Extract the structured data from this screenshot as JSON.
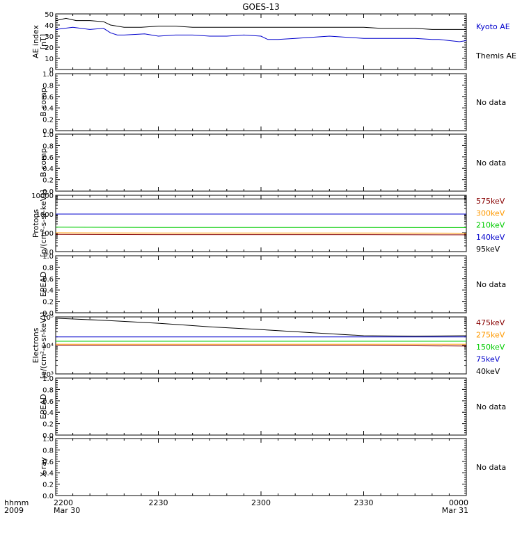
{
  "title": "GOES-13",
  "x_axis": {
    "row1_label": "hhmm",
    "row2_label": "2009",
    "ticks": [
      {
        "t": 0,
        "label": "2200",
        "sub": "Mar 30"
      },
      {
        "t": 30,
        "label": "2230",
        "sub": ""
      },
      {
        "t": 60,
        "label": "2300",
        "sub": ""
      },
      {
        "t": 90,
        "label": "2330",
        "sub": ""
      },
      {
        "t": 120,
        "label": "0000",
        "sub": "Mar 31"
      }
    ]
  },
  "chart_data": [
    {
      "type": "line",
      "ylabel": "AE index [nT]",
      "ylabel_lines": [
        "AE index",
        "[nT]"
      ],
      "ylim": [
        0,
        50
      ],
      "yticks": [
        0,
        10,
        20,
        30,
        40,
        50
      ],
      "xlim_minutes": [
        0,
        120
      ],
      "series": [
        {
          "name": "Kyoto AE",
          "color": "#0000cc",
          "x": [
            0,
            5,
            10,
            14,
            16,
            18,
            20,
            26,
            30,
            35,
            40,
            45,
            50,
            55,
            60,
            62,
            65,
            70,
            75,
            80,
            85,
            90,
            95,
            100,
            105,
            110,
            112,
            115,
            118,
            120
          ],
          "y": [
            36,
            38,
            36,
            37,
            33,
            31,
            31,
            32,
            30,
            31,
            31,
            30,
            30,
            31,
            30,
            27,
            27,
            28,
            29,
            30,
            29,
            28,
            28,
            28,
            28,
            27,
            27,
            26,
            25,
            26
          ]
        },
        {
          "name": "Themis AE",
          "color": "#000000",
          "x": [
            0,
            3,
            6,
            10,
            14,
            16,
            18,
            20,
            25,
            30,
            35,
            40,
            45,
            50,
            55,
            60,
            65,
            70,
            75,
            80,
            85,
            90,
            95,
            100,
            105,
            110,
            113,
            116,
            120
          ],
          "y": [
            44,
            46,
            44,
            44,
            43,
            40,
            39,
            38,
            38,
            39,
            39,
            38,
            38,
            38,
            38,
            38,
            38,
            38,
            38,
            38,
            38,
            38,
            37,
            37,
            37,
            36,
            36,
            36,
            36
          ]
        }
      ]
    },
    {
      "type": "line",
      "ylabel": "B comp",
      "ylim": [
        0,
        1
      ],
      "yticks": [
        0.0,
        0.2,
        0.4,
        0.6,
        0.8,
        1.0
      ],
      "ytick_labels": [
        "0.0",
        "0.2",
        "0.4",
        "0.6",
        "0.8",
        "1.0"
      ],
      "note": "No data",
      "series": []
    },
    {
      "type": "line",
      "ylabel": "B comp",
      "ylim": [
        0,
        1
      ],
      "yticks": [
        0.0,
        0.2,
        0.4,
        0.6,
        0.8,
        1.0
      ],
      "ytick_labels": [
        "0.0",
        "0.2",
        "0.4",
        "0.6",
        "0.8",
        "1.0"
      ],
      "note": "No data",
      "series": []
    },
    {
      "type": "line",
      "ylabel": "Protons [p/(cm²-s-sr-keV)]",
      "ylabel_lines": [
        "Protons",
        "[p/(cm²-s-sr-keV)]"
      ],
      "log": true,
      "ylim": [
        10,
        10000
      ],
      "yticks": [
        10,
        100,
        1000,
        10000
      ],
      "ytick_labels": [
        "10",
        "100",
        "1000",
        "10000"
      ],
      "series": [
        {
          "name": "575keV",
          "color": "#880000",
          "x": [
            0,
            30,
            60,
            90,
            120
          ],
          "y": [
            82,
            80,
            80,
            80,
            78
          ]
        },
        {
          "name": "300keV",
          "color": "#ff9900",
          "x": [
            0,
            30,
            60,
            90,
            120
          ],
          "y": [
            100,
            98,
            98,
            98,
            96
          ]
        },
        {
          "name": "210keV",
          "color": "#00cc00",
          "x": [
            0,
            30,
            60,
            90,
            120
          ],
          "y": [
            200,
            195,
            195,
            195,
            192
          ]
        },
        {
          "name": "140keV",
          "color": "#0000cc",
          "x": [
            0,
            30,
            60,
            90,
            120
          ],
          "y": [
            1000,
            1000,
            1000,
            1000,
            1000
          ]
        },
        {
          "name": "95keV",
          "color": "#000000",
          "x": [
            0,
            30,
            60,
            90,
            120
          ],
          "y": [
            6200,
            6300,
            6400,
            6500,
            6500
          ]
        }
      ]
    },
    {
      "type": "line",
      "ylabel": "EPEAD",
      "ylim": [
        0,
        1
      ],
      "yticks": [
        0.0,
        0.2,
        0.4,
        0.6,
        0.8,
        1.0
      ],
      "ytick_labels": [
        "0.0",
        "0.2",
        "0.4",
        "0.6",
        "0.8",
        "1.0"
      ],
      "note": "No data",
      "series": []
    },
    {
      "type": "line",
      "ylabel": "Electrons [e/(cm²-s-sr-keV)]",
      "ylabel_lines": [
        "Electrons",
        "[e/(cm²-s-sr-keV)]"
      ],
      "log": true,
      "ylim": [
        1000,
        100000
      ],
      "yticks": [
        1000,
        10000,
        100000
      ],
      "ytick_labels": [
        "10³",
        "10⁴",
        "10⁵"
      ],
      "series": [
        {
          "name": "475keV",
          "color": "#880000",
          "x": [
            0,
            30,
            60,
            90,
            120
          ],
          "y": [
            10000,
            10000,
            10000,
            10000,
            9500
          ]
        },
        {
          "name": "275keV",
          "color": "#ff9900",
          "x": [
            0,
            30,
            60,
            90,
            120
          ],
          "y": [
            11000,
            11000,
            11000,
            11000,
            11000
          ]
        },
        {
          "name": "150keV",
          "color": "#00cc00",
          "x": [
            0,
            30,
            60,
            90,
            120
          ],
          "y": [
            14000,
            14000,
            14000,
            14000,
            14000
          ]
        },
        {
          "name": "75keV",
          "color": "#0000cc",
          "x": [
            0,
            30,
            60,
            90,
            120
          ],
          "y": [
            20000,
            20000,
            20000,
            20000,
            20000
          ]
        },
        {
          "name": "40keV",
          "color": "#000000",
          "x": [
            0,
            15,
            30,
            45,
            60,
            75,
            90,
            105,
            120
          ],
          "y": [
            90000,
            75000,
            60000,
            45000,
            36000,
            28000,
            22000,
            21000,
            22000
          ]
        }
      ]
    },
    {
      "type": "line",
      "ylabel": "EPEAD",
      "ylim": [
        0,
        1
      ],
      "yticks": [
        0.0,
        0.2,
        0.4,
        0.6,
        0.8,
        1.0
      ],
      "ytick_labels": [
        "0.0",
        "0.2",
        "0.4",
        "0.6",
        "0.8",
        "1.0"
      ],
      "note": "No data",
      "series": []
    },
    {
      "type": "line",
      "ylabel": "X-ray",
      "ylim": [
        0,
        1
      ],
      "yticks": [
        0.0,
        0.2,
        0.4,
        0.6,
        0.8,
        1.0
      ],
      "ytick_labels": [
        "0.0",
        "0.2",
        "0.4",
        "0.6",
        "0.8",
        "1.0"
      ],
      "note": "No data",
      "series": []
    }
  ]
}
